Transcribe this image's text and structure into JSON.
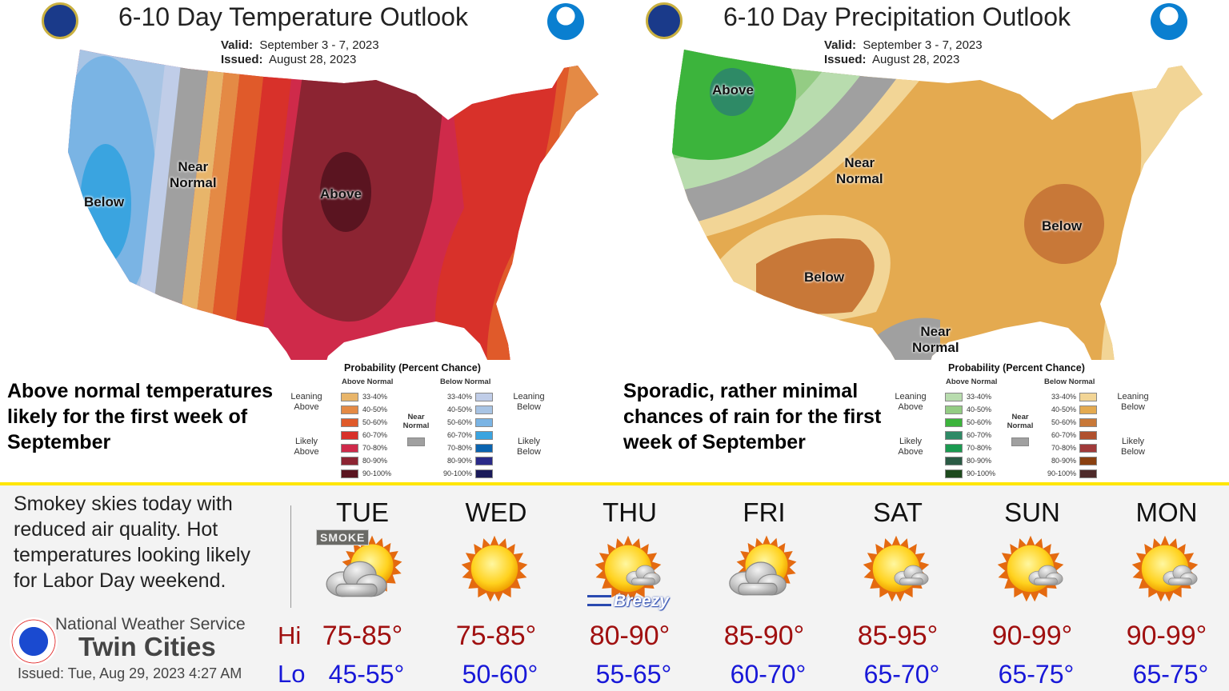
{
  "temperature_map": {
    "title": "6-10 Day Temperature Outlook",
    "valid_label": "Valid:",
    "valid": "September 3 - 7, 2023",
    "issued_label": "Issued:",
    "issued": "August 28, 2023",
    "labels": {
      "below": "Below",
      "near": "Near\nNormal",
      "above": "Above"
    },
    "caption": "Above normal temperatures likely for the first week of September",
    "legend": {
      "title": "Probability (Percent Chance)",
      "above_header": "Above Normal",
      "below_header": "Below Normal",
      "leaning_above": "Leaning Above",
      "likely_above": "Likely Above",
      "leaning_below": "Leaning Below",
      "likely_below": "Likely Below",
      "near_normal": "Near Normal",
      "near_color": "#a0a0a0",
      "ranges": [
        "33-40%",
        "40-50%",
        "50-60%",
        "60-70%",
        "70-80%",
        "80-90%",
        "90-100%"
      ],
      "above_colors": [
        "#e8b56a",
        "#e48a45",
        "#e05a2a",
        "#d8312a",
        "#cf2a4a",
        "#8c2432",
        "#5a1420"
      ],
      "below_colors": [
        "#c0cde8",
        "#a8c4e4",
        "#7ab4e4",
        "#3aa4e0",
        "#0a64b0",
        "#2a2a88",
        "#1a1a5a"
      ]
    }
  },
  "precipitation_map": {
    "title": "6-10 Day Precipitation Outlook",
    "valid_label": "Valid:",
    "valid": "September 3 - 7, 2023",
    "issued_label": "Issued:",
    "issued": "August 28, 2023",
    "labels": {
      "above": "Above",
      "near1": "Near\nNormal",
      "below1": "Below",
      "below2": "Below",
      "near2": "Near\nNormal"
    },
    "caption": "Sporadic, rather minimal chances of rain for the first week of September",
    "legend": {
      "title": "Probability (Percent Chance)",
      "above_header": "Above Normal",
      "below_header": "Below Normal",
      "leaning_above": "Leaning Above",
      "likely_above": "Likely Above",
      "leaning_below": "Leaning Below",
      "likely_below": "Likely Below",
      "near_normal": "Near Normal",
      "near_color": "#a0a0a0",
      "ranges": [
        "33-40%",
        "40-50%",
        "50-60%",
        "60-70%",
        "70-80%",
        "80-90%",
        "90-100%"
      ],
      "above_colors": [
        "#b8dcae",
        "#94cc84",
        "#3cb43c",
        "#2e8a66",
        "#1a9a50",
        "#2a5a44",
        "#1e4a1e"
      ],
      "below_colors": [
        "#f2d596",
        "#e4aa50",
        "#c87838",
        "#b0502e",
        "#a03a3a",
        "#8a4010",
        "#4e2a2a"
      ]
    }
  },
  "forecast": {
    "summary": "Smokey skies today with reduced air quality. Hot temperatures looking likely for Labor Day weekend.",
    "office_line1": "National Weather Service",
    "office_name": "Twin Cities",
    "issued": "Issued: Tue, Aug 29, 2023 4:27 AM",
    "hi_label": "Hi",
    "lo_label": "Lo",
    "days": [
      {
        "name": "TUE",
        "icon": "smoke-partly-cloudy-icon",
        "badge": "SMOKE",
        "hi": "75-85°",
        "lo": "45-55°"
      },
      {
        "name": "WED",
        "icon": "sunny-icon",
        "hi": "75-85°",
        "lo": "50-60°"
      },
      {
        "name": "THU",
        "icon": "mostly-sunny-icon",
        "badge": "Breezy",
        "hi": "80-90°",
        "lo": "55-65°"
      },
      {
        "name": "FRI",
        "icon": "partly-cloudy-icon",
        "hi": "85-90°",
        "lo": "60-70°"
      },
      {
        "name": "SAT",
        "icon": "mostly-sunny-icon",
        "hi": "85-95°",
        "lo": "65-70°"
      },
      {
        "name": "SUN",
        "icon": "mostly-sunny-icon",
        "hi": "90-99°",
        "lo": "65-75°"
      },
      {
        "name": "MON",
        "icon": "mostly-sunny-icon",
        "hi": "90-99°",
        "lo": "65-75°"
      }
    ]
  }
}
